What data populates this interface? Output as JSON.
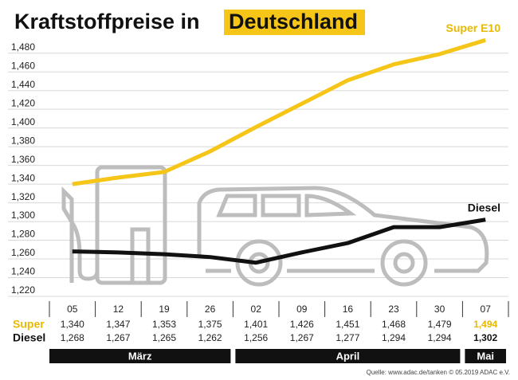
{
  "chart_data": {
    "type": "line",
    "title": "Kraftstoffpreise in",
    "title_highlight": "Deutschland",
    "groups": [
      {
        "name": "März",
        "categories": [
          "05",
          "12",
          "19",
          "26"
        ]
      },
      {
        "name": "April",
        "categories": [
          "02",
          "09",
          "16",
          "23",
          "30"
        ]
      },
      {
        "name": "Mai",
        "categories": [
          "07"
        ]
      }
    ],
    "row_labels": [
      "Super",
      "Diesel"
    ],
    "series": [
      {
        "name": "Super E10",
        "color": "#f5c518",
        "values": [
          1.34,
          1.347,
          1.353,
          1.375,
          1.401,
          1.426,
          1.451,
          1.468,
          1.479,
          1.494
        ],
        "value_labels": [
          "1,340",
          "1,347",
          "1,353",
          "1,375",
          "1,401",
          "1,426",
          "1,451",
          "1,468",
          "1,479",
          "1,494"
        ]
      },
      {
        "name": "Diesel",
        "color": "#111111",
        "values": [
          1.268,
          1.267,
          1.265,
          1.262,
          1.256,
          1.267,
          1.277,
          1.294,
          1.294,
          1.302
        ],
        "value_labels": [
          "1,268",
          "1,267",
          "1,265",
          "1,262",
          "1,256",
          "1,267",
          "1,277",
          "1,294",
          "1,294",
          "1,302"
        ]
      }
    ],
    "ylim": [
      1.22,
      1.49
    ],
    "yticks": [
      {
        "value": 1.22,
        "label": "1,220"
      },
      {
        "value": 1.24,
        "label": "1,240"
      },
      {
        "value": 1.26,
        "label": "1,260"
      },
      {
        "value": 1.28,
        "label": "1,280"
      },
      {
        "value": 1.3,
        "label": "1,300"
      },
      {
        "value": 1.32,
        "label": "1,320"
      },
      {
        "value": 1.34,
        "label": "1,340"
      },
      {
        "value": 1.36,
        "label": "1,360"
      },
      {
        "value": 1.38,
        "label": "1,380"
      },
      {
        "value": 1.4,
        "label": "1,400"
      },
      {
        "value": 1.42,
        "label": "1,420"
      },
      {
        "value": 1.44,
        "label": "1,440"
      },
      {
        "value": 1.46,
        "label": "1,460"
      },
      {
        "value": 1.48,
        "label": "1,480"
      }
    ],
    "grid": true,
    "source": "Quelle: www.adac.de/tanken  © 05.2019  ADAC e.V."
  }
}
